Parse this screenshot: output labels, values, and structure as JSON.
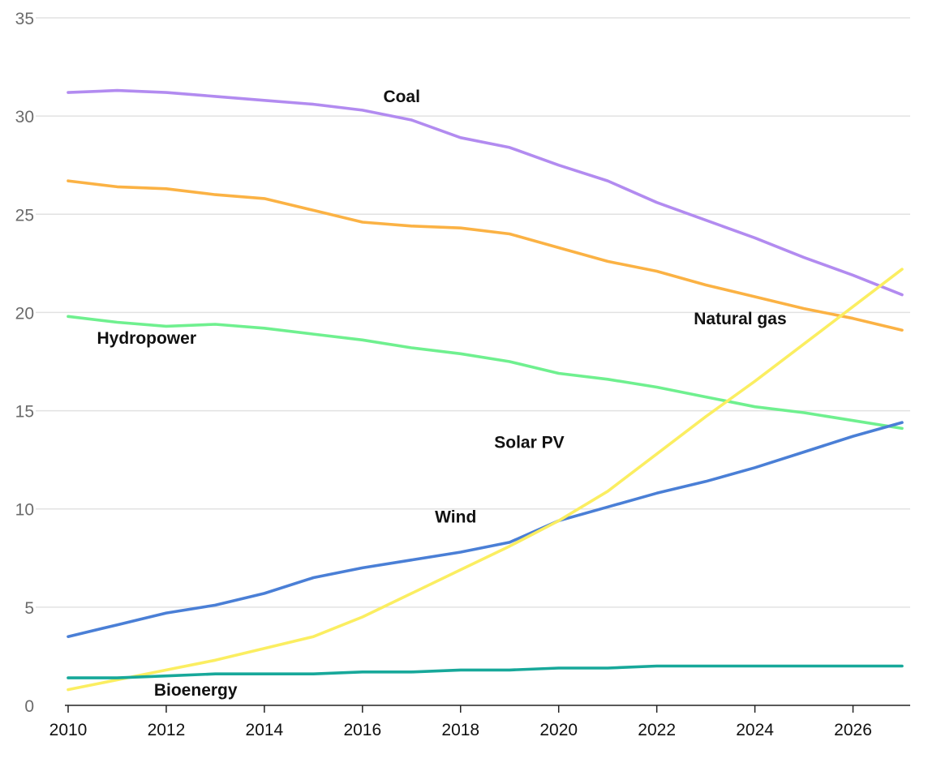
{
  "chart_data": {
    "type": "line",
    "title": "",
    "xlabel": "",
    "ylabel": "",
    "xlim": [
      2010,
      2027
    ],
    "ylim": [
      0,
      35
    ],
    "grid": true,
    "legend": "inline labels",
    "y_ticks": [
      "0",
      "5",
      "10",
      "15",
      "20",
      "25",
      "30",
      "35"
    ],
    "x_ticks": [
      "2010",
      "2012",
      "2014",
      "2016",
      "2018",
      "2020",
      "2022",
      "2024",
      "2026"
    ],
    "x": [
      2010,
      2011,
      2012,
      2013,
      2014,
      2015,
      2016,
      2017,
      2018,
      2019,
      2020,
      2021,
      2022,
      2023,
      2024,
      2025,
      2026,
      2027
    ],
    "series": [
      {
        "name": "Coal",
        "color": "#b28bf0",
        "values": [
          31.2,
          31.3,
          31.2,
          31.0,
          30.8,
          30.6,
          30.3,
          29.8,
          28.9,
          28.4,
          27.5,
          26.7,
          25.6,
          24.7,
          23.8,
          22.8,
          21.9,
          20.9
        ]
      },
      {
        "name": "Natural gas",
        "color": "#fbb244",
        "values": [
          26.7,
          26.4,
          26.3,
          26.0,
          25.8,
          25.2,
          24.6,
          24.4,
          24.3,
          24.0,
          23.3,
          22.6,
          22.1,
          21.4,
          20.8,
          20.2,
          19.7,
          19.1
        ]
      },
      {
        "name": "Hydropower",
        "color": "#6ff08f",
        "values": [
          19.8,
          19.5,
          19.3,
          19.4,
          19.2,
          18.9,
          18.6,
          18.2,
          17.9,
          17.5,
          16.9,
          16.6,
          16.2,
          15.7,
          15.2,
          14.9,
          14.5,
          14.1
        ]
      },
      {
        "name": "Wind",
        "color": "#4a7fd6",
        "values": [
          3.5,
          4.1,
          4.7,
          5.1,
          5.7,
          6.5,
          7.0,
          7.4,
          7.8,
          8.3,
          9.4,
          10.1,
          10.8,
          11.4,
          12.1,
          12.9,
          13.7,
          14.4
        ]
      },
      {
        "name": "Solar PV",
        "color": "#fbee61",
        "values": [
          0.8,
          1.3,
          1.8,
          2.3,
          2.9,
          3.5,
          4.5,
          5.7,
          6.9,
          8.1,
          9.4,
          10.9,
          12.8,
          14.7,
          16.5,
          18.4,
          20.3,
          22.2
        ]
      },
      {
        "name": "Bioenergy",
        "color": "#17a89a",
        "values": [
          1.4,
          1.4,
          1.5,
          1.6,
          1.6,
          1.6,
          1.7,
          1.7,
          1.8,
          1.8,
          1.9,
          1.9,
          2.0,
          2.0,
          2.0,
          2.0,
          2.0,
          2.0
        ]
      }
    ],
    "annotations": [
      {
        "text": "Coal",
        "x": 2016.8,
        "y": 30.7
      },
      {
        "text": "Natural gas",
        "x": 2023.7,
        "y": 19.4
      },
      {
        "text": "Hydropower",
        "x": 2011.6,
        "y": 18.4
      },
      {
        "text": "Solar PV",
        "x": 2019.4,
        "y": 13.1
      },
      {
        "text": "Wind",
        "x": 2017.9,
        "y": 9.3
      },
      {
        "text": "Bioenergy",
        "x": 2012.6,
        "y": 0.5
      }
    ]
  }
}
